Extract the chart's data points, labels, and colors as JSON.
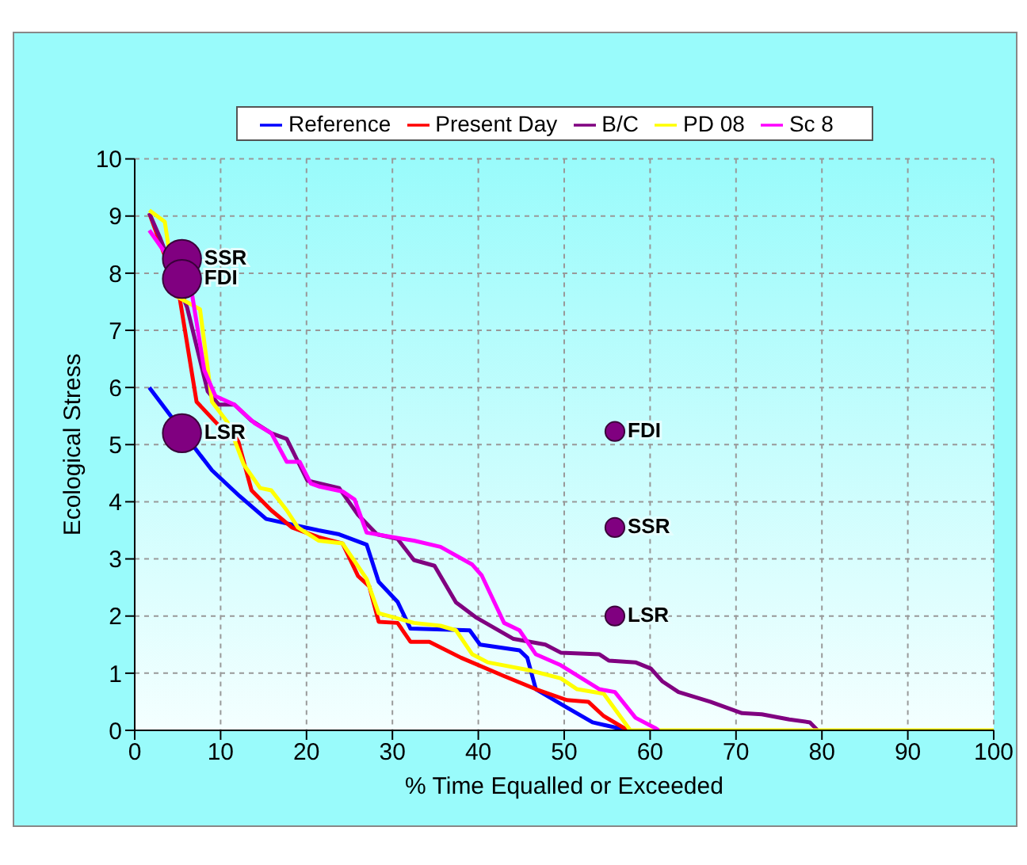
{
  "chart_data": {
    "type": "line",
    "xlabel": "% Time Equalled or Exceeded",
    "ylabel": "Ecological Stress",
    "xlim": [
      0,
      100
    ],
    "ylim": [
      0,
      10
    ],
    "xticks": [
      0,
      10,
      20,
      30,
      40,
      50,
      60,
      70,
      80,
      90,
      100
    ],
    "yticks": [
      0,
      1,
      2,
      3,
      4,
      5,
      6,
      7,
      8,
      9,
      10
    ],
    "grid": true,
    "legend": "top",
    "line_style": "solid",
    "series": [
      {
        "name": "Reference",
        "color": "#0000ff",
        "x": [
          1.7,
          7.2,
          9,
          12.2,
          15.3,
          21.4,
          23.8,
          27,
          28.4,
          30.6,
          32.1,
          39,
          40.2,
          44.8,
          45.7,
          46.7,
          50.3,
          53.3,
          57.4
        ],
        "values": [
          6.0,
          4.9,
          4.55,
          4.1,
          3.7,
          3.5,
          3.43,
          3.25,
          2.6,
          2.25,
          1.78,
          1.75,
          1.5,
          1.4,
          1.27,
          0.72,
          0.4,
          0.14,
          0
        ]
      },
      {
        "name": "Present Day",
        "color": "#ff0000",
        "x": [
          1.7,
          5.2,
          7.2,
          10,
          11.8,
          13.6,
          15.9,
          18.3,
          21.4,
          24.2,
          26,
          27.3,
          28.4,
          30.6,
          32.1,
          34.3,
          38,
          43,
          46.7,
          50.3,
          52.8,
          54.6,
          57.4
        ],
        "values": [
          9.05,
          7.6,
          5.75,
          5.3,
          5.2,
          4.2,
          3.85,
          3.55,
          3.38,
          3.27,
          2.7,
          2.52,
          1.9,
          1.88,
          1.55,
          1.55,
          1.27,
          0.95,
          0.72,
          0.53,
          0.5,
          0.25,
          0
        ]
      },
      {
        "name": "B/C",
        "color": "#800080",
        "x": [
          1.7,
          3,
          6.1,
          8.5,
          9.8,
          11.6,
          13.5,
          15.9,
          17.7,
          20.1,
          23.8,
          26,
          28.2,
          30.6,
          32.5,
          34.9,
          37.4,
          39.8,
          44.1,
          47.8,
          49.6,
          54.1,
          55.2,
          58.3,
          60.1,
          61.4,
          63.3,
          67,
          70.7,
          73,
          76.2,
          78.6,
          79.5
        ],
        "values": [
          9.05,
          8.6,
          7.4,
          5.93,
          5.7,
          5.7,
          5.43,
          5.2,
          5.1,
          4.37,
          4.24,
          3.77,
          3.43,
          3.35,
          2.98,
          2.88,
          2.24,
          1.97,
          1.6,
          1.5,
          1.36,
          1.33,
          1.22,
          1.19,
          1.08,
          0.86,
          0.67,
          0.5,
          0.3,
          0.28,
          0.19,
          0.14,
          0
        ]
      },
      {
        "name": "PD 08",
        "color": "#ffff00",
        "x": [
          1.7,
          3.5,
          4.8,
          7.6,
          9,
          10.9,
          12.7,
          14.6,
          15.9,
          17.7,
          19,
          21.4,
          24.2,
          27,
          28.4,
          32.5,
          35.6,
          37.4,
          39.3,
          41.1,
          46,
          49.6,
          51.5,
          54.6,
          57.7,
          100
        ],
        "values": [
          9.1,
          8.9,
          7.6,
          7.37,
          5.75,
          5.37,
          4.65,
          4.24,
          4.2,
          3.85,
          3.55,
          3.32,
          3.27,
          2.65,
          2.05,
          1.88,
          1.83,
          1.75,
          1.33,
          1.19,
          1.05,
          0.91,
          0.72,
          0.64,
          0,
          0
        ]
      },
      {
        "name": "Sc 8",
        "color": "#ff00ff",
        "x": [
          1.7,
          6.6,
          8.1,
          9.4,
          11.6,
          14,
          15.9,
          17.7,
          19.2,
          20.5,
          21.4,
          24.2,
          25.6,
          27,
          31.2,
          32.5,
          35.6,
          39.3,
          40.4,
          43,
          44.8,
          46.7,
          49.6,
          54.1,
          55.9,
          58.3,
          60.7,
          61
        ],
        "values": [
          8.75,
          7.7,
          6.3,
          5.85,
          5.7,
          5.37,
          5.2,
          4.7,
          4.7,
          4.32,
          4.27,
          4.18,
          4.04,
          3.46,
          3.35,
          3.32,
          3.21,
          2.9,
          2.71,
          1.88,
          1.75,
          1.33,
          1.14,
          0.72,
          0.67,
          0.22,
          0.03,
          0
        ]
      },
      {
        "type": "bubble",
        "color": "#800080",
        "x": [
          5.5,
          5.5,
          5.5,
          55.9,
          55.9,
          55.9
        ],
        "values": [
          8.25,
          7.9,
          5.2,
          5.23,
          3.55,
          2.0
        ],
        "sizes": [
          1,
          1,
          1,
          0.25,
          0.25,
          0.25
        ]
      }
    ],
    "annotations": [
      "SSR",
      "FDI",
      "LSR",
      "FDI",
      "SSR",
      "LSR"
    ]
  }
}
